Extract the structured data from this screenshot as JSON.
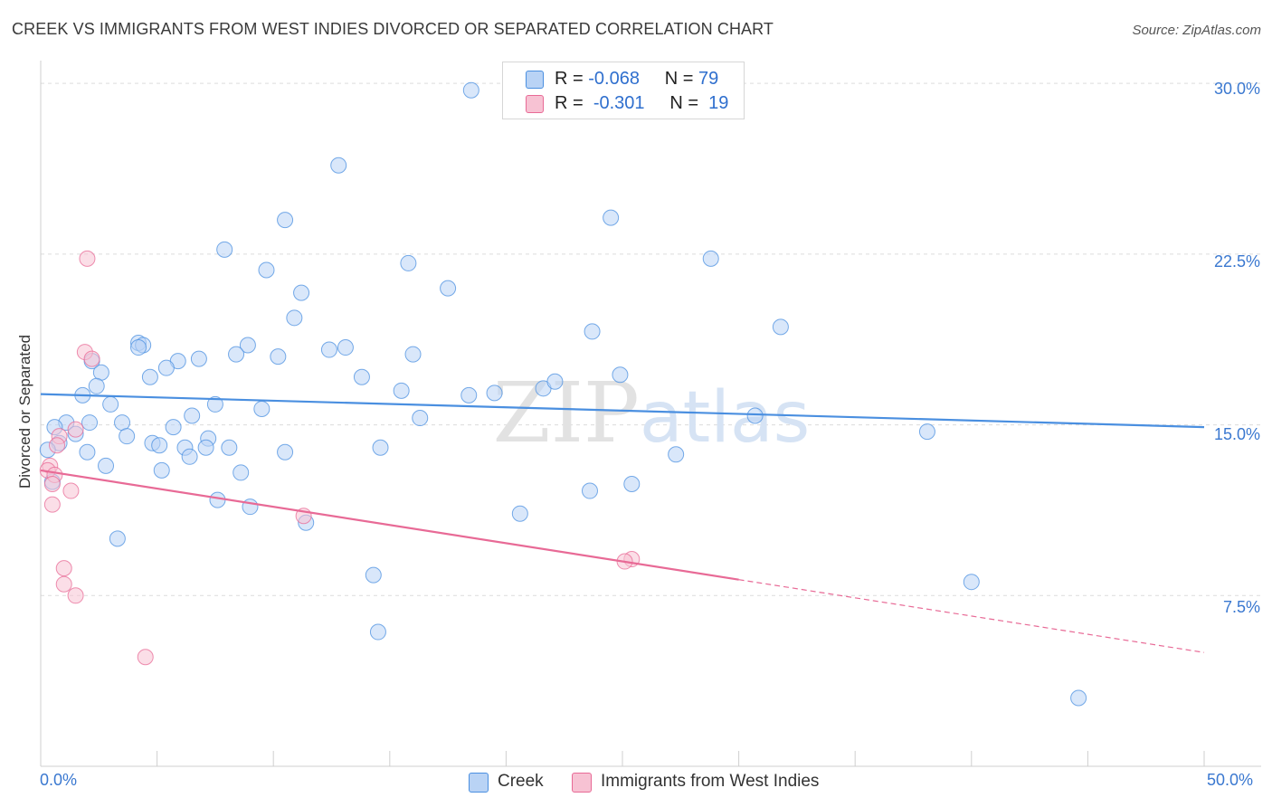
{
  "title": "CREEK VS IMMIGRANTS FROM WEST INDIES DIVORCED OR SEPARATED CORRELATION CHART",
  "source": "Source: ZipAtlas.com",
  "watermark": "ZIPatlas",
  "colors": {
    "blue": "#4a8fe0",
    "blue_fill": "#b9d3f5",
    "pink": "#e86a96",
    "pink_fill": "#f7c2d3",
    "tick_text": "#3a78d0"
  },
  "legend": {
    "rows": [
      {
        "r_label": "R =",
        "r_value": "-0.068",
        "n_label": "N =",
        "n_value": "79"
      },
      {
        "r_label": "R =",
        "r_value": "-0.301",
        "n_label": "N =",
        "n_value": "19"
      }
    ]
  },
  "bottom_legend": {
    "series1": "Creek",
    "series2": "Immigrants from West Indies"
  },
  "chart_data": {
    "type": "scatter",
    "title": "CREEK VS IMMIGRANTS FROM WEST INDIES DIVORCED OR SEPARATED CORRELATION CHART",
    "xlabel": "",
    "ylabel": "Divorced or Separated",
    "xlim": [
      0,
      50
    ],
    "ylim": [
      0,
      31
    ],
    "x_tick_labels": [
      "0.0%",
      "50.0%"
    ],
    "y_ticks": [
      7.5,
      15.0,
      22.5,
      30.0
    ],
    "y_tick_labels": [
      "7.5%",
      "15.0%",
      "22.5%",
      "30.0%"
    ],
    "series": [
      {
        "name": "Creek",
        "color": "#4a8fe0",
        "trend": {
          "x": [
            0,
            50
          ],
          "y": [
            16.35,
            14.9
          ]
        },
        "points": [
          [
            18.5,
            29.7
          ],
          [
            12.8,
            26.4
          ],
          [
            10.5,
            24.0
          ],
          [
            24.5,
            24.1
          ],
          [
            7.9,
            22.7
          ],
          [
            15.8,
            22.1
          ],
          [
            28.8,
            22.3
          ],
          [
            9.7,
            21.8
          ],
          [
            17.5,
            21.0
          ],
          [
            11.2,
            20.8
          ],
          [
            10.9,
            19.7
          ],
          [
            23.7,
            19.1
          ],
          [
            31.8,
            19.3
          ],
          [
            4.2,
            18.6
          ],
          [
            4.4,
            18.5
          ],
          [
            4.2,
            18.4
          ],
          [
            8.9,
            18.5
          ],
          [
            12.4,
            18.3
          ],
          [
            13.1,
            18.4
          ],
          [
            8.4,
            18.1
          ],
          [
            10.2,
            18.0
          ],
          [
            16.0,
            18.1
          ],
          [
            6.8,
            17.9
          ],
          [
            5.9,
            17.8
          ],
          [
            2.2,
            17.8
          ],
          [
            5.4,
            17.5
          ],
          [
            2.6,
            17.3
          ],
          [
            4.7,
            17.1
          ],
          [
            13.8,
            17.1
          ],
          [
            24.9,
            17.2
          ],
          [
            2.4,
            16.7
          ],
          [
            21.6,
            16.6
          ],
          [
            22.1,
            16.9
          ],
          [
            15.5,
            16.5
          ],
          [
            18.4,
            16.3
          ],
          [
            19.5,
            16.4
          ],
          [
            1.8,
            16.3
          ],
          [
            3.0,
            15.9
          ],
          [
            7.5,
            15.9
          ],
          [
            9.5,
            15.7
          ],
          [
            30.7,
            15.4
          ],
          [
            6.5,
            15.4
          ],
          [
            16.3,
            15.3
          ],
          [
            3.5,
            15.1
          ],
          [
            1.1,
            15.1
          ],
          [
            2.1,
            15.1
          ],
          [
            0.6,
            14.9
          ],
          [
            5.7,
            14.9
          ],
          [
            38.1,
            14.7
          ],
          [
            1.5,
            14.6
          ],
          [
            3.7,
            14.5
          ],
          [
            7.2,
            14.4
          ],
          [
            0.8,
            14.2
          ],
          [
            4.8,
            14.2
          ],
          [
            5.1,
            14.1
          ],
          [
            6.2,
            14.0
          ],
          [
            8.1,
            14.0
          ],
          [
            7.1,
            14.0
          ],
          [
            14.6,
            14.0
          ],
          [
            2.0,
            13.8
          ],
          [
            0.3,
            13.9
          ],
          [
            10.5,
            13.8
          ],
          [
            6.4,
            13.6
          ],
          [
            27.3,
            13.7
          ],
          [
            2.8,
            13.2
          ],
          [
            5.2,
            13.0
          ],
          [
            8.6,
            12.9
          ],
          [
            0.5,
            12.5
          ],
          [
            25.4,
            12.4
          ],
          [
            23.6,
            12.1
          ],
          [
            7.6,
            11.7
          ],
          [
            9.0,
            11.4
          ],
          [
            20.6,
            11.1
          ],
          [
            11.4,
            10.7
          ],
          [
            3.3,
            10.0
          ],
          [
            14.3,
            8.4
          ],
          [
            40.0,
            8.1
          ],
          [
            14.5,
            5.9
          ],
          [
            44.6,
            3.0
          ]
        ]
      },
      {
        "name": "Immigrants from West Indies",
        "color": "#e86a96",
        "trend": {
          "x": [
            0,
            30
          ],
          "y": [
            13.0,
            8.2
          ]
        },
        "trend_dashed": {
          "x": [
            30,
            50
          ],
          "y": [
            8.2,
            5.0
          ]
        },
        "points": [
          [
            2.0,
            22.3
          ],
          [
            1.9,
            18.2
          ],
          [
            2.2,
            17.9
          ],
          [
            1.5,
            14.8
          ],
          [
            0.8,
            14.5
          ],
          [
            0.7,
            14.1
          ],
          [
            0.4,
            13.2
          ],
          [
            0.3,
            13.0
          ],
          [
            0.6,
            12.8
          ],
          [
            0.5,
            12.4
          ],
          [
            1.3,
            12.1
          ],
          [
            0.5,
            11.5
          ],
          [
            11.3,
            11.0
          ],
          [
            25.4,
            9.1
          ],
          [
            25.1,
            9.0
          ],
          [
            1.0,
            8.7
          ],
          [
            1.0,
            8.0
          ],
          [
            1.5,
            7.5
          ],
          [
            4.5,
            4.8
          ]
        ]
      }
    ]
  }
}
